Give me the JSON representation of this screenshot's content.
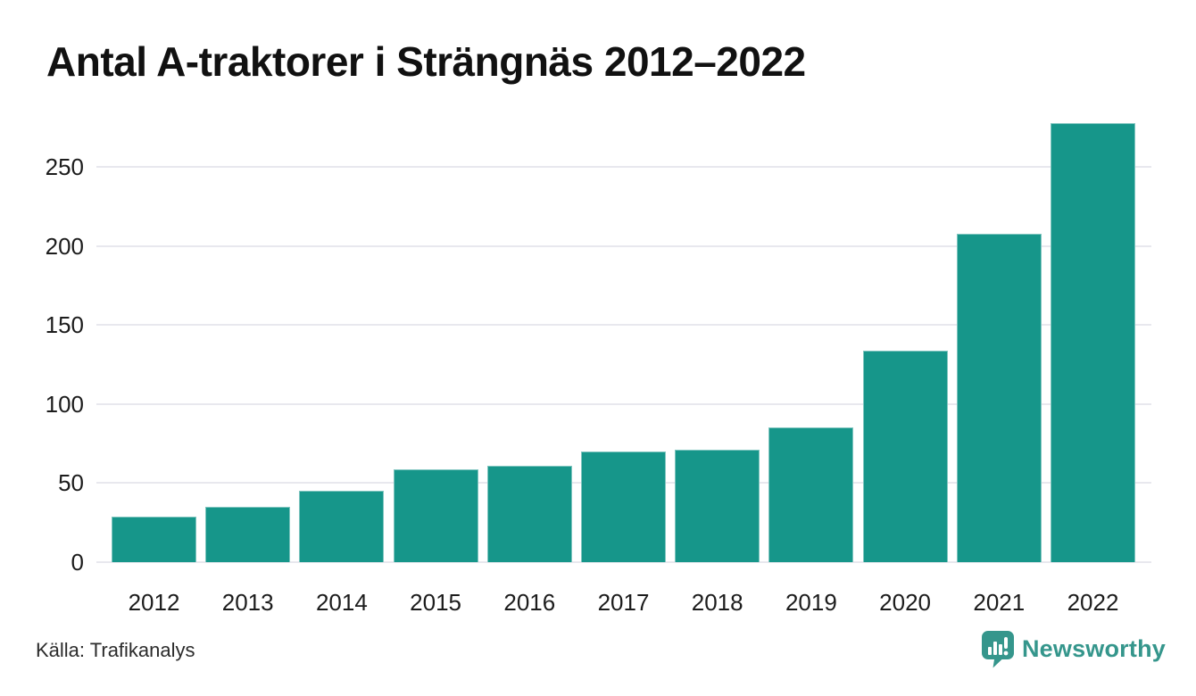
{
  "title": "Antal A-traktorer i Strängnäs 2012–2022",
  "source": "Källa: Trafikanalys",
  "branding": {
    "logo_text": "Newsworthy",
    "logo_icon": "bar-chart-speech-bubble-icon"
  },
  "colors": {
    "bar": "#16968a",
    "grid": "#e8e8ee",
    "title_text": "#111111",
    "axis_text": "#1c1c1c",
    "source_text": "#2b2b2b",
    "brand": "#35968c",
    "background": "#ffffff"
  },
  "chart_data": {
    "type": "bar",
    "title": "Antal A-traktorer i Strängnäs 2012–2022",
    "categories": [
      "2012",
      "2013",
      "2014",
      "2015",
      "2016",
      "2017",
      "2018",
      "2019",
      "2020",
      "2021",
      "2022"
    ],
    "values": [
      29,
      35,
      45,
      59,
      61,
      70,
      71,
      85,
      134,
      208,
      278
    ],
    "xlabel": "",
    "ylabel": "",
    "ylim": [
      0,
      288
    ],
    "yticks": [
      0,
      50,
      100,
      150,
      200,
      250
    ],
    "grid": true,
    "legend": false
  }
}
